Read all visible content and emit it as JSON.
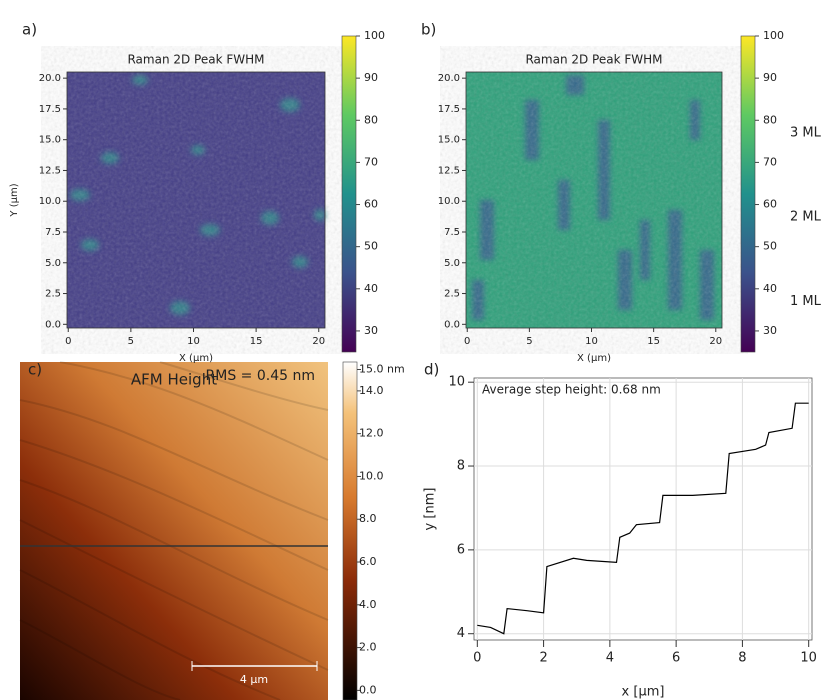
{
  "chart_data": [
    {
      "type": "heatmap",
      "panel": "a)",
      "title": "Raman 2D Peak FWHM",
      "xlabel": "X (μm)",
      "ylabel": "Y (μm)",
      "xlim": [
        -0.1,
        20.5
      ],
      "ylim": [
        -0.3,
        20.5
      ],
      "xticks": [
        0,
        5,
        10,
        15,
        20
      ],
      "yticks": [
        {
          "value": 0,
          "label": "0.0"
        },
        2.5,
        {
          "value": 5,
          "label": "5.0"
        },
        7.5,
        {
          "value": 10,
          "label": "10.0"
        },
        12.5,
        {
          "value": 15,
          "label": "15.0"
        },
        17.5,
        {
          "value": 20,
          "label": "20.0"
        }
      ],
      "clim": [
        25,
        100
      ],
      "cticks": [
        30,
        40,
        50,
        60,
        70,
        80,
        90,
        100
      ]
    },
    {
      "type": "heatmap",
      "panel": "b)",
      "title": "Raman 2D Peak FWHM",
      "xlabel": "X (μm)",
      "xlim": [
        -0.1,
        20.5
      ],
      "ylim": [
        -0.3,
        20.5
      ],
      "xticks": [
        0,
        5,
        10,
        15,
        20
      ],
      "yticks": [
        {
          "value": 0,
          "label": "0.0"
        },
        2.5,
        {
          "value": 5,
          "label": "5.0"
        },
        7.5,
        {
          "value": 10,
          "label": "10.0"
        },
        12.5,
        {
          "value": 15,
          "label": "15.0"
        },
        17.5,
        {
          "value": 20,
          "label": "20.0"
        }
      ],
      "clim": [
        25,
        100
      ],
      "cticks": [
        30,
        40,
        50,
        60,
        70,
        80,
        90,
        100
      ],
      "cbar_annotations": [
        {
          "value": 37,
          "label": "1 ML"
        },
        {
          "value": 57,
          "label": "2 ML"
        },
        {
          "value": 77,
          "label": "3 ML"
        }
      ]
    },
    {
      "type": "image",
      "panel": "c)",
      "title": "AFM Height",
      "annotation": "RMS = 0.45 nm",
      "scalebar": "4 μm",
      "clim": [
        -0.45,
        15.35
      ],
      "cticks": [
        {
          "value": 0,
          "label": "0.0"
        },
        {
          "value": 2,
          "label": "2.0"
        },
        {
          "value": 4,
          "label": "4.0"
        },
        {
          "value": 6,
          "label": "6.0"
        },
        {
          "value": 8,
          "label": "8.0"
        },
        {
          "value": 10,
          "label": "10.0"
        },
        {
          "value": 12,
          "label": "12.0"
        },
        {
          "value": 14,
          "label": "14.0"
        },
        {
          "value": 15,
          "label": "15.0 nm"
        }
      ]
    },
    {
      "type": "line",
      "panel": "d)",
      "annotation": "Average step height: 0.68 nm",
      "xlabel": "x [μm]",
      "ylabel": "y [nm]",
      "xlim": [
        -0.1,
        10.1
      ],
      "ylim": [
        3.85,
        10.1
      ],
      "xticks": [
        0,
        2,
        4,
        6,
        8,
        10
      ],
      "yticks": [
        4,
        6,
        8,
        10
      ],
      "grid": true,
      "color": "#000000",
      "x": [
        0,
        0.4,
        0.8,
        0.9,
        1.5,
        2.0,
        2.1,
        2.9,
        3.3,
        4.2,
        4.3,
        4.6,
        4.8,
        5.5,
        5.6,
        6.5,
        7.5,
        7.6,
        8.4,
        8.7,
        8.8,
        9.5,
        9.6,
        10
      ],
      "values": [
        4.2,
        4.15,
        4.0,
        4.6,
        4.55,
        4.5,
        5.6,
        5.8,
        5.75,
        5.7,
        6.3,
        6.4,
        6.6,
        6.65,
        7.3,
        7.3,
        7.35,
        8.3,
        8.4,
        8.5,
        8.8,
        8.9,
        9.5,
        9.5
      ]
    }
  ]
}
